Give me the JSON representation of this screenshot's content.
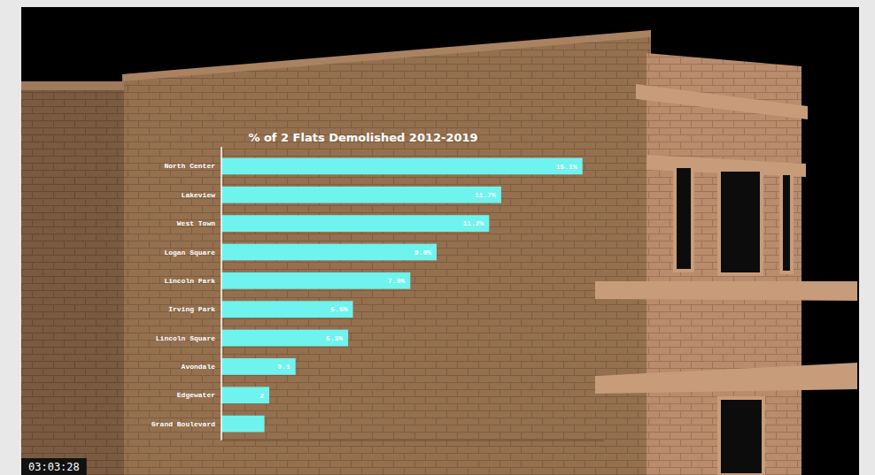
{
  "chart_data": {
    "type": "bar",
    "orientation": "horizontal",
    "title": "% of 2 Flats Demolished 2012-2019",
    "categories": [
      "North Center",
      "Lakeview",
      "West Town",
      "Logan Square",
      "Lincoln Park",
      "Irving Park",
      "Lincoln Square",
      "Avondale",
      "Edgewater",
      "Grand Boulevard"
    ],
    "values": [
      15.1,
      11.7,
      11.2,
      9.0,
      7.9,
      5.5,
      5.3,
      3.1,
      2,
      1.8
    ],
    "value_labels": [
      "15.1%",
      "11.7%",
      "11.2%",
      "9.0%",
      "7.9%",
      "5.5%",
      "5.3%",
      "3.1",
      "2",
      null
    ],
    "data_labels": true,
    "color": "#6ef3ee",
    "xlim": [
      0,
      16
    ],
    "xticks": [],
    "tick_labels": "y",
    "grid": false,
    "annotations": [
      "03:03:28"
    ]
  }
}
